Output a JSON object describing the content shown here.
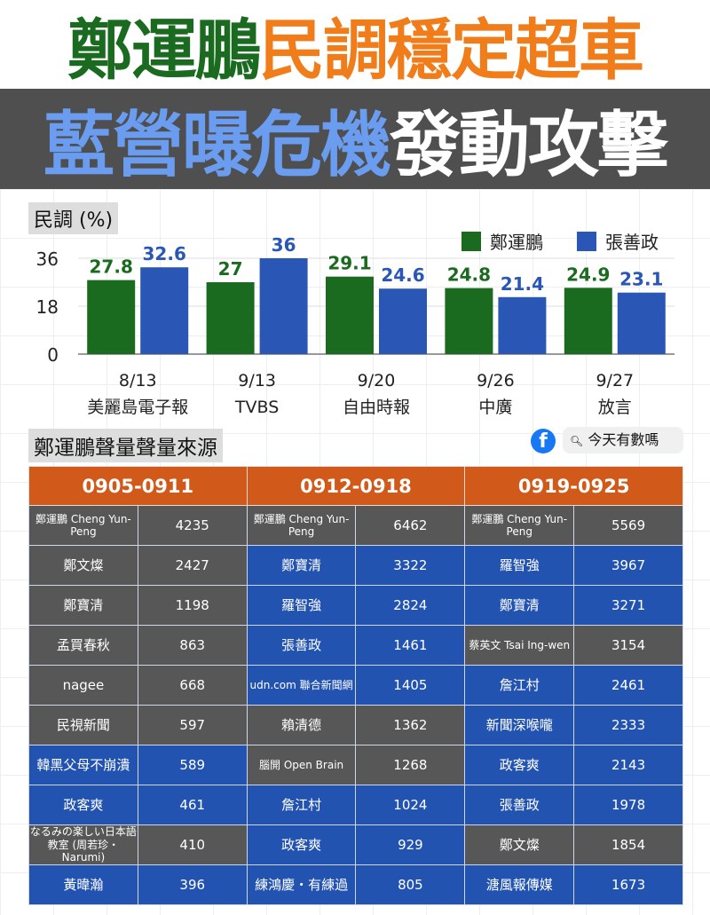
{
  "headline": {
    "line1_a": "鄭運鵬",
    "line1_b": "民調穩定超車",
    "line2_a": "藍營曝危機",
    "line2_b": "發動攻擊"
  },
  "colors": {
    "green": "#1a6b1f",
    "orange": "#f07d1a",
    "lightblue": "#5b8fe8",
    "blue": "#2a56b5",
    "gray": "#575757",
    "tableHeader": "#d15a1a"
  },
  "chart_data": {
    "type": "bar",
    "ylabel": "民調 (%)",
    "ylim": [
      0,
      36
    ],
    "yticks": [
      0,
      18,
      36
    ],
    "categories": [
      [
        "8/13",
        "美麗島電子報"
      ],
      [
        "9/13",
        "TVBS"
      ],
      [
        "9/20",
        "自由時報"
      ],
      [
        "9/26",
        "中廣"
      ],
      [
        "9/27",
        "放言"
      ]
    ],
    "series": [
      {
        "name": "鄭運鵬",
        "color": "#1a6b1f",
        "values": [
          27.8,
          27,
          29.1,
          24.8,
          24.9
        ]
      },
      {
        "name": "張善政",
        "color": "#2a56b5",
        "values": [
          32.6,
          36,
          24.6,
          21.4,
          23.1
        ]
      }
    ],
    "legend": "top-right",
    "grid": true
  },
  "section_title": "鄭運鵬聲量聲量來源",
  "source": {
    "icon": "facebook-icon",
    "search_label": "今天有數嗎"
  },
  "table": {
    "headers": [
      "0905-0911",
      "0912-0918",
      "0919-0925"
    ],
    "rows": [
      [
        [
          "鄭運鵬 Cheng Yun-Peng",
          "4235",
          "g"
        ],
        [
          "鄭運鵬 Cheng Yun-Peng",
          "6462",
          "g"
        ],
        [
          "鄭運鵬 Cheng Yun-Peng",
          "5569",
          "g"
        ]
      ],
      [
        [
          "鄭文燦",
          "2427",
          "g"
        ],
        [
          "鄭寶清",
          "3322",
          "b"
        ],
        [
          "羅智強",
          "3967",
          "b"
        ]
      ],
      [
        [
          "鄭寶清",
          "1198",
          "g"
        ],
        [
          "羅智強",
          "2824",
          "b"
        ],
        [
          "鄭寶清",
          "3271",
          "b"
        ]
      ],
      [
        [
          "孟買春秋",
          "863",
          "g"
        ],
        [
          "張善政",
          "1461",
          "b"
        ],
        [
          "蔡英文 Tsai Ing-wen",
          "3154",
          "g"
        ]
      ],
      [
        [
          "nagee",
          "668",
          "g"
        ],
        [
          "udn.com 聯合新聞網",
          "1405",
          "b"
        ],
        [
          "詹江村",
          "2461",
          "b"
        ]
      ],
      [
        [
          "民視新聞",
          "597",
          "g"
        ],
        [
          "賴清德",
          "1362",
          "g"
        ],
        [
          "新聞深喉嚨",
          "2333",
          "b"
        ]
      ],
      [
        [
          "韓黑父母不崩潰",
          "589",
          "b"
        ],
        [
          "腦開 Open Brain",
          "1268",
          "g"
        ],
        [
          "政客爽",
          "2143",
          "b"
        ]
      ],
      [
        [
          "政客爽",
          "461",
          "b"
        ],
        [
          "詹江村",
          "1024",
          "b"
        ],
        [
          "張善政",
          "1978",
          "b"
        ]
      ],
      [
        [
          "なるみの楽しい日本語教室 (周若珍・Narumi)",
          "410",
          "g"
        ],
        [
          "政客爽",
          "929",
          "b"
        ],
        [
          "鄭文燦",
          "1854",
          "g"
        ]
      ],
      [
        [
          "黃暐瀚",
          "396",
          "b"
        ],
        [
          "練鴻慶・有練過",
          "805",
          "b"
        ],
        [
          "溏風報傳媒",
          "1673",
          "b"
        ]
      ]
    ]
  }
}
